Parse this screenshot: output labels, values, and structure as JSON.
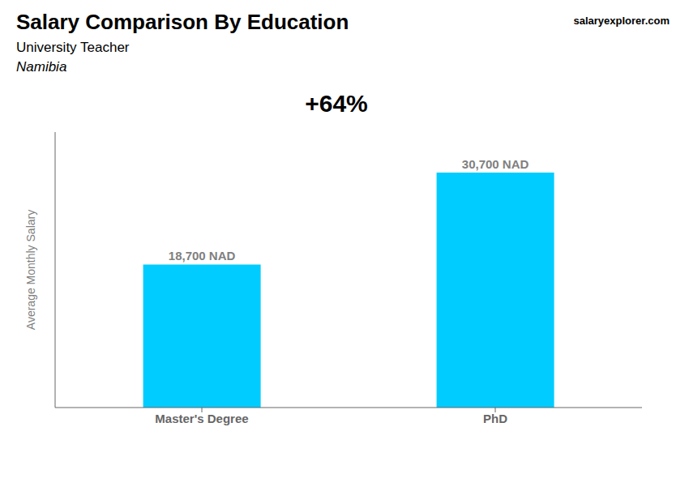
{
  "chart_data": {
    "type": "bar",
    "title": "Salary Comparison By Education",
    "subtitle": "University Teacher",
    "annotations": [
      "Namibia",
      "salaryexplorer.com",
      "+64%"
    ],
    "y_label": "Average Monthly Salary",
    "categories": [
      "Master's Degree",
      "PhD"
    ],
    "values": [
      18700,
      30700
    ],
    "value_labels": [
      "18,700 NAD",
      "30,700 NAD"
    ],
    "data_labels": true,
    "color": "#00ccff",
    "ylim": [
      0,
      36000
    ],
    "tick_labels": "x",
    "grid": false
  }
}
